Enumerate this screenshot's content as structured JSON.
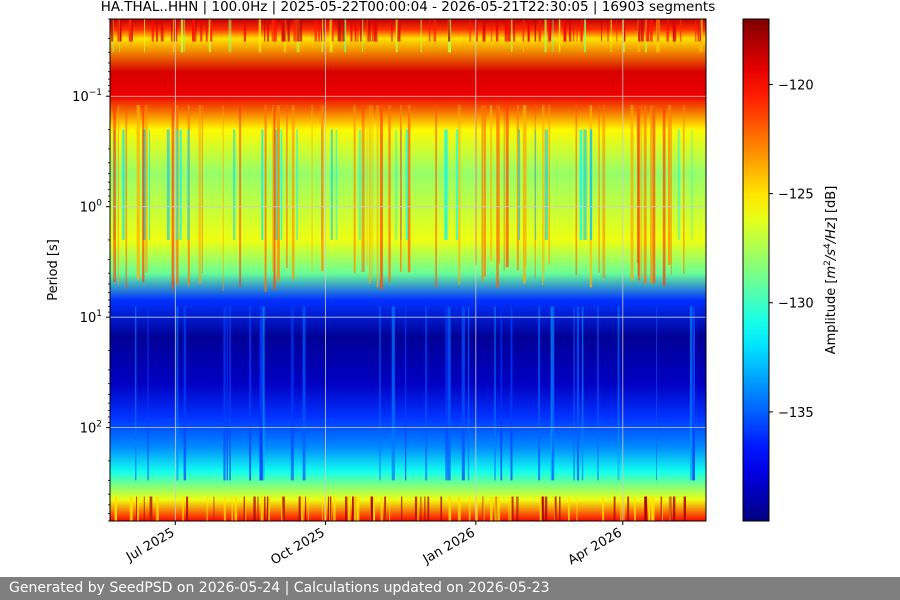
{
  "chart_data": {
    "type": "heatmap",
    "title": "HA.THAL..HHN | 100.0Hz | 2025-05-22T00:00:04 - 2026-05-21T22:30:05 | 16903 segments",
    "xlabel": "",
    "ylabel": "Period [s]",
    "x_range": [
      "2025-05-22T00:00:04",
      "2026-05-21T22:30:05"
    ],
    "x_ticks": [
      {
        "date": "2025-07-01",
        "label": "Jul 2025"
      },
      {
        "date": "2025-10-01",
        "label": "Oct 2025"
      },
      {
        "date": "2026-01-01",
        "label": "Jan 2026"
      },
      {
        "date": "2026-04-01",
        "label": "Apr 2026"
      }
    ],
    "y_scale": "log",
    "y_inverted": true,
    "y_range": [
      0.02,
      700
    ],
    "y_ticks": [
      {
        "value": 0.1,
        "base": "10",
        "exp": "−1"
      },
      {
        "value": 1,
        "base": "10",
        "exp": "0"
      },
      {
        "value": 10,
        "base": "10",
        "exp": "1"
      },
      {
        "value": 100,
        "base": "10",
        "exp": "2"
      }
    ],
    "grid": true,
    "colorbar": {
      "label_prefix": "Amplitude [",
      "label_units_a": "m",
      "label_sup_a": "2",
      "label_units_b": "/s",
      "label_sup_b": "4",
      "label_units_c": "/Hz",
      "label_suffix": "] [dB]",
      "colormap": "jet",
      "range": [
        -140,
        -117
      ],
      "ticks": [
        {
          "value": -120,
          "label": "−120"
        },
        {
          "value": -125,
          "label": "−125"
        },
        {
          "value": -130,
          "label": "−130"
        },
        {
          "value": -135,
          "label": "−135"
        }
      ]
    },
    "spectral_profile_by_period": [
      {
        "period": 0.02,
        "db": -118.5
      },
      {
        "period": 0.025,
        "db": -121
      },
      {
        "period": 0.03,
        "db": -125
      },
      {
        "period": 0.06,
        "db": -119
      },
      {
        "period": 0.1,
        "db": -119.5
      },
      {
        "period": 0.2,
        "db": -125.5
      },
      {
        "period": 0.5,
        "db": -128
      },
      {
        "period": 1,
        "db": -127
      },
      {
        "period": 2,
        "db": -126
      },
      {
        "period": 4,
        "db": -129
      },
      {
        "period": 7,
        "db": -136
      },
      {
        "period": 15,
        "db": -139.5
      },
      {
        "period": 40,
        "db": -138.5
      },
      {
        "period": 80,
        "db": -136
      },
      {
        "period": 150,
        "db": -134
      },
      {
        "period": 250,
        "db": -131
      },
      {
        "period": 450,
        "db": -126
      },
      {
        "period": 700,
        "db": -120
      }
    ]
  },
  "footer": {
    "text": "Generated by SeedPSD on 2026-05-24 | Calculations updated on 2026-05-23"
  }
}
